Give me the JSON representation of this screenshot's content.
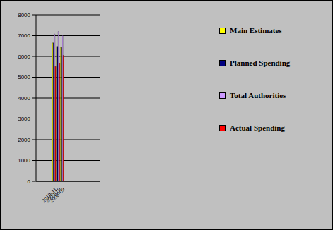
{
  "chart_data": {
    "type": "bar",
    "categories": [
      "2008-09",
      "2009-10",
      "2010-11"
    ],
    "series": [
      {
        "name": "Main Estimates",
        "color": "#ffff00",
        "values": [
          6430,
          6480,
          6650
        ]
      },
      {
        "name": "Planned Spending",
        "color": "#000080",
        "values": [
          6430,
          6480,
          6650
        ]
      },
      {
        "name": "Total Authorities",
        "color": "#cc99ff",
        "values": [
          7000,
          7200,
          7080
        ]
      },
      {
        "name": "Actual Spending",
        "color": "#ff0000",
        "values": [
          6050,
          5680,
          5520
        ]
      }
    ],
    "ylim": [
      0,
      8000
    ],
    "yticks": [
      0,
      1000,
      2000,
      3000,
      4000,
      5000,
      6000,
      7000,
      8000
    ],
    "grid": true,
    "legend": "right"
  }
}
